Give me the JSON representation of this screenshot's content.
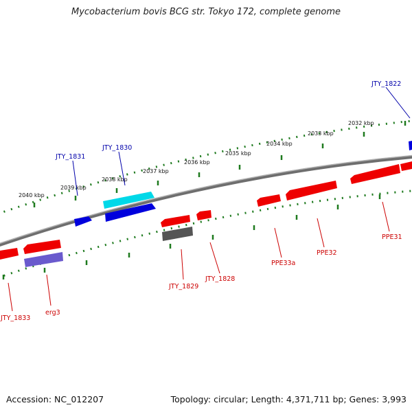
{
  "title": "Mycobacterium bovis BCG str. Tokyo 172, complete genome",
  "footer": {
    "accession": "Accession: NC_012207",
    "topology": "Topology: circular; Length: 4,371,711 bp; Genes: 3,993"
  },
  "scale_labels": [
    "2040 kbp",
    "2039 kbp",
    "2038 kbp",
    "2037 kbp",
    "2036 kbp",
    "2035 kbp",
    "2034 kbp",
    "2033 kbp",
    "2032 kbp"
  ],
  "genes_blue": [
    "JTY_1831",
    "JTY_1830",
    "JTY_1822"
  ],
  "genes_red": [
    "JTY_1833",
    "erg3",
    "JTY_1829",
    "JTY_1828",
    "PPE33a",
    "PPE32",
    "PPE31"
  ],
  "colors": {
    "backbone": "#8a8a8a",
    "tick": "#1e7a1e",
    "gene_red": "#ee0000",
    "gene_blue": "#0000dd",
    "gene_cyan": "#00d8e8",
    "gene_purple": "#6a5acd",
    "gene_gray": "#555555",
    "label_blue": "#0000aa",
    "label_red": "#cc0000"
  }
}
